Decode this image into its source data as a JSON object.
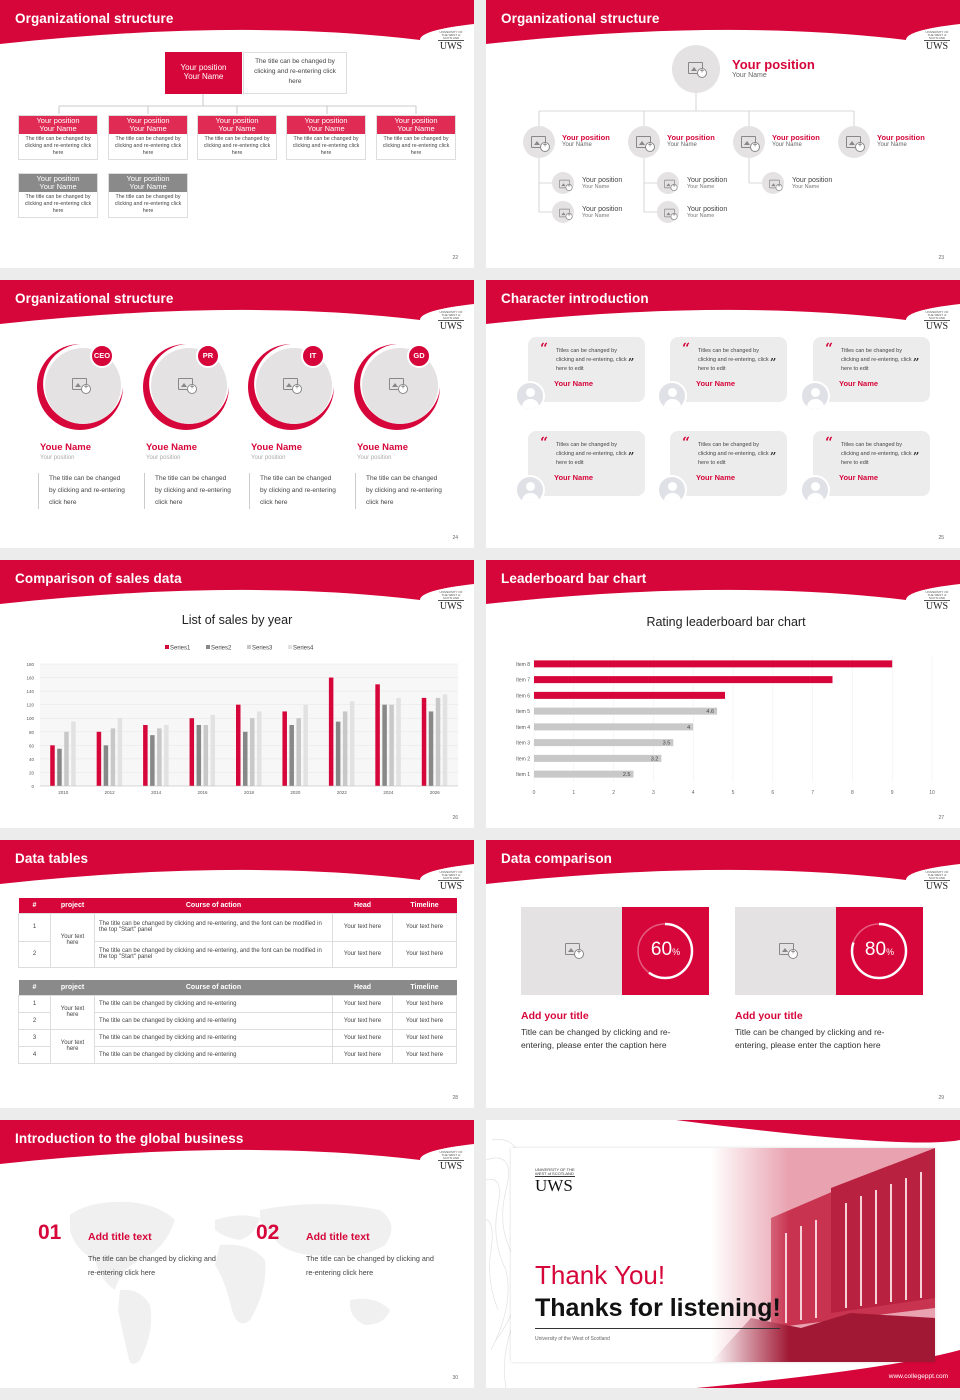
{
  "colors": {
    "accent": "#d6063a",
    "gray": "#888888",
    "lightgray": "#c8c8c8"
  },
  "logo": {
    "small": "UNIVERSITY OF THE WEST of SCOTLAND",
    "big": "UWS"
  },
  "s22": {
    "title": "Organizational structure",
    "page": "22",
    "top": {
      "pos": "Your position",
      "name": "Your Name",
      "note": "The title can be changed by clicking and re-entering click here"
    },
    "row1": [
      {
        "pos": "Your position",
        "name": "Your Name",
        "desc": "The title can be changed by clicking and re-entering click here"
      },
      {
        "pos": "Your position",
        "name": "Your Name",
        "desc": "The title can be changed by clicking and re-entering click here"
      },
      {
        "pos": "Your position",
        "name": "Your Name",
        "desc": "The title can be changed by clicking and re-entering click here"
      },
      {
        "pos": "Your position",
        "name": "Your Name",
        "desc": "The title can be changed by clicking and re-entering click here"
      },
      {
        "pos": "Your position",
        "name": "Your Name",
        "desc": "The title can be changed by clicking and re-entering click here"
      }
    ],
    "row2": [
      {
        "pos": "Your position",
        "name": "Your Name",
        "desc": "The title can be changed by clicking and re-entering click here"
      },
      {
        "pos": "Your position",
        "name": "Your Name",
        "desc": "The title can be changed by clicking and re-entering click here"
      }
    ]
  },
  "s23": {
    "title": "Organizational structure",
    "page": "23",
    "top": {
      "pos": "Your position",
      "name": "Your Name"
    },
    "mid": [
      {
        "pos": "Your position",
        "name": "Your Name"
      },
      {
        "pos": "Your position",
        "name": "Your Name"
      },
      {
        "pos": "Your position",
        "name": "Your Name"
      },
      {
        "pos": "Your position",
        "name": "Your Name"
      }
    ],
    "sub": [
      {
        "pos": "Your position",
        "name": "Your Name"
      },
      {
        "pos": "Your position",
        "name": "Your Name"
      },
      {
        "pos": "Your position",
        "name": "Your Name"
      },
      {
        "pos": "Your position",
        "name": "Your Name"
      },
      {
        "pos": "Your position",
        "name": "Your Name"
      }
    ]
  },
  "s24": {
    "title": "Organizational structure",
    "page": "24",
    "people": [
      {
        "tag": "CEO",
        "name": "Youe Name",
        "pos": "Your position",
        "desc": "The title can be changed by clicking and re-entering click here"
      },
      {
        "tag": "PR",
        "name": "Youe Name",
        "pos": "Your position",
        "desc": "The title can be changed by clicking and re-entering click here"
      },
      {
        "tag": "IT",
        "name": "Youe Name",
        "pos": "Your position",
        "desc": "The title can be changed by clicking and re-entering click here"
      },
      {
        "tag": "GD",
        "name": "Youe Name",
        "pos": "Your position",
        "desc": "The title can be changed by clicking and re-entering click here"
      }
    ]
  },
  "s25": {
    "title": "Character introduction",
    "page": "25",
    "quote": "Titles can be changed by clicking and re-entering, click here to edit",
    "name": "Your Name"
  },
  "s26": {
    "title": "Comparison of sales data",
    "page": "26"
  },
  "s27": {
    "title": "Leaderboard bar chart",
    "page": "27"
  },
  "s28": {
    "title": "Data tables",
    "page": "28",
    "t1": {
      "headers": [
        "#",
        "project",
        "Course of action",
        "Head",
        "Timeline"
      ],
      "project": "Your text here",
      "rows": [
        {
          "n": "1",
          "action": "The title can be changed by clicking and re-entering, and the font can be modified in the top \"Start\" panel",
          "head": "Your text here",
          "time": "Your text here"
        },
        {
          "n": "2",
          "action": "The title can be changed by clicking and re-entering, and the font can be modified in the top \"Start\" panel",
          "head": "Your text here",
          "time": "Your text here"
        }
      ]
    },
    "t2": {
      "headers": [
        "#",
        "project",
        "Course of action",
        "Head",
        "Timeline"
      ],
      "project1": "Your text here",
      "project2": "Your text here",
      "rows": [
        {
          "n": "1",
          "action": "The title can be changed by clicking and re-entering",
          "head": "Your text here",
          "time": "Your text here"
        },
        {
          "n": "2",
          "action": "The title can be changed by clicking and re-entering",
          "head": "Your text here",
          "time": "Your text here"
        },
        {
          "n": "3",
          "action": "The title can be changed by clicking and re-entering",
          "head": "Your text here",
          "time": "Your text here"
        },
        {
          "n": "4",
          "action": "The title can be changed by clicking and re-entering",
          "head": "Your text here",
          "time": "Your text here"
        }
      ]
    }
  },
  "s29": {
    "title": "Data comparison",
    "page": "29",
    "items": [
      {
        "value": "60",
        "unit": "%",
        "progress": 0.6,
        "title": "Add your title",
        "desc": "Title can be changed by clicking and re-entering, please enter the caption here"
      },
      {
        "value": "80",
        "unit": "%",
        "progress": 0.8,
        "title": "Add your title",
        "desc": "Title can be changed by clicking and re-entering, please enter the caption here"
      }
    ]
  },
  "s30": {
    "title": "Introduction to the global business",
    "page": "30",
    "items": [
      {
        "num": "01",
        "title": "Add title text",
        "desc": "The title can be changed by clicking and re-entering click here"
      },
      {
        "num": "02",
        "title": "Add title text",
        "desc": "The title can be changed by clicking and re-entering click here"
      }
    ]
  },
  "s31": {
    "thank": "Thank You!",
    "listen": "Thanks for listening!",
    "uni": "University of the West of Scotland",
    "url": "www.collegeppt.com"
  },
  "chart_data": [
    {
      "type": "bar",
      "title": "List of sales by year",
      "categories": [
        "2010",
        "2012",
        "2014",
        "2016",
        "2018",
        "2020",
        "2022",
        "2024",
        "2026"
      ],
      "ylim": [
        0,
        180
      ],
      "yticks": [
        0,
        20,
        40,
        60,
        80,
        100,
        120,
        140,
        160,
        180
      ],
      "series": [
        {
          "name": "Series1",
          "color": "#d6063a",
          "values": [
            60,
            80,
            90,
            100,
            120,
            110,
            160,
            150,
            130
          ]
        },
        {
          "name": "Series2",
          "color": "#888888",
          "values": [
            55,
            60,
            75,
            90,
            80,
            90,
            95,
            120,
            110
          ]
        },
        {
          "name": "Series3",
          "color": "#c8c8c8",
          "values": [
            80,
            85,
            85,
            90,
            100,
            100,
            110,
            120,
            130
          ]
        },
        {
          "name": "Series4",
          "color": "#e2e2e2",
          "values": [
            95,
            100,
            90,
            105,
            110,
            120,
            125,
            130,
            135
          ]
        }
      ],
      "legend": "top"
    },
    {
      "type": "bar",
      "orientation": "horizontal",
      "title": "Rating leaderboard bar chart",
      "categories": [
        "Item 8",
        "Item 7",
        "Item 6",
        "Item 5",
        "Item 4",
        "Item 3",
        "Item 2",
        "Item 1"
      ],
      "values": [
        9,
        7.5,
        4.8,
        4.6,
        4,
        3.5,
        3.2,
        2.5
      ],
      "labels": [
        "",
        "",
        "",
        "4.6",
        "4",
        "3.5",
        "3.2",
        "2.5"
      ],
      "colors": [
        "#d6063a",
        "#d6063a",
        "#d6063a",
        "#c8c8c8",
        "#c8c8c8",
        "#c8c8c8",
        "#c8c8c8",
        "#c8c8c8"
      ],
      "xlim": [
        0,
        10
      ],
      "xticks": [
        "0",
        "1",
        "2",
        "3",
        "4",
        "5",
        "6",
        "7",
        "8",
        "9",
        "10"
      ]
    }
  ]
}
